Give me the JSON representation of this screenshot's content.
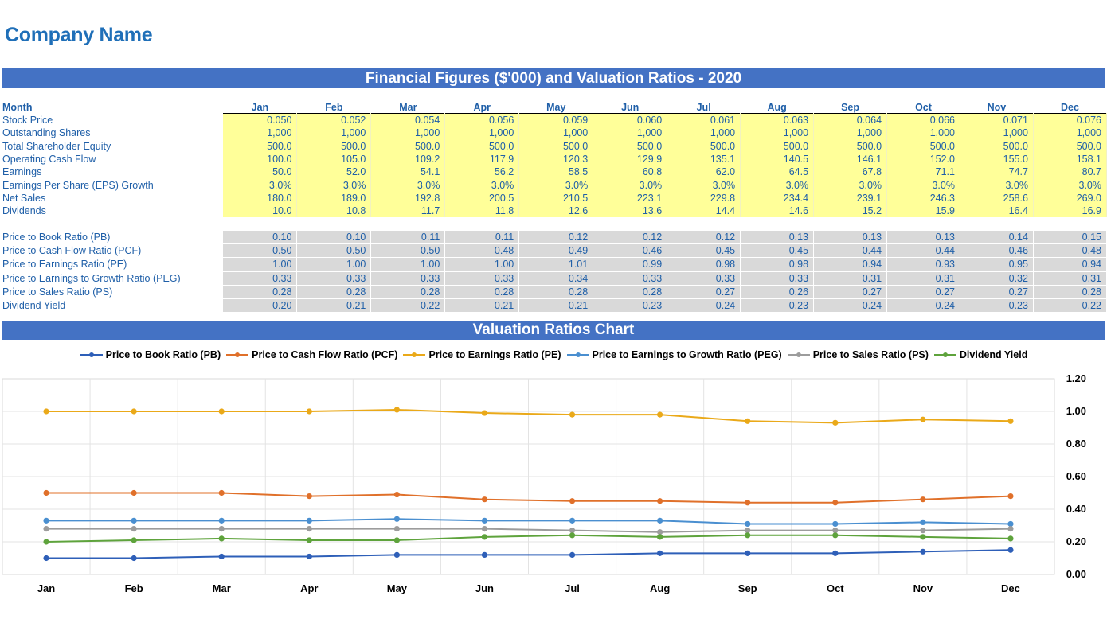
{
  "company_name": "Company Name",
  "table_title": "Financial Figures ($'000) and Valuation Ratios - 2020",
  "chart_title": "Valuation Ratios Chart",
  "months_header": "Month",
  "months": [
    "Jan",
    "Feb",
    "Mar",
    "Apr",
    "May",
    "Jun",
    "Jul",
    "Aug",
    "Sep",
    "Oct",
    "Nov",
    "Dec"
  ],
  "financial_rows": [
    {
      "label": "Stock Price",
      "values": [
        "0.050",
        "0.052",
        "0.054",
        "0.056",
        "0.059",
        "0.060",
        "0.061",
        "0.063",
        "0.064",
        "0.066",
        "0.071",
        "0.076"
      ]
    },
    {
      "label": "Outstanding Shares",
      "values": [
        "1,000",
        "1,000",
        "1,000",
        "1,000",
        "1,000",
        "1,000",
        "1,000",
        "1,000",
        "1,000",
        "1,000",
        "1,000",
        "1,000"
      ]
    },
    {
      "label": "Total Shareholder Equity",
      "values": [
        "500.0",
        "500.0",
        "500.0",
        "500.0",
        "500.0",
        "500.0",
        "500.0",
        "500.0",
        "500.0",
        "500.0",
        "500.0",
        "500.0"
      ]
    },
    {
      "label": "Operating Cash Flow",
      "values": [
        "100.0",
        "105.0",
        "109.2",
        "117.9",
        "120.3",
        "129.9",
        "135.1",
        "140.5",
        "146.1",
        "152.0",
        "155.0",
        "158.1"
      ]
    },
    {
      "label": "Earnings",
      "values": [
        "50.0",
        "52.0",
        "54.1",
        "56.2",
        "58.5",
        "60.8",
        "62.0",
        "64.5",
        "67.8",
        "71.1",
        "74.7",
        "80.7"
      ]
    },
    {
      "label": "Earnings Per Share (EPS) Growth",
      "values": [
        "3.0%",
        "3.0%",
        "3.0%",
        "3.0%",
        "3.0%",
        "3.0%",
        "3.0%",
        "3.0%",
        "3.0%",
        "3.0%",
        "3.0%",
        "3.0%"
      ]
    },
    {
      "label": "Net Sales",
      "values": [
        "180.0",
        "189.0",
        "192.8",
        "200.5",
        "210.5",
        "223.1",
        "229.8",
        "234.4",
        "239.1",
        "246.3",
        "258.6",
        "269.0"
      ]
    },
    {
      "label": "Dividends",
      "values": [
        "10.0",
        "10.8",
        "11.7",
        "11.8",
        "12.6",
        "13.6",
        "14.4",
        "14.6",
        "15.2",
        "15.9",
        "16.4",
        "16.9"
      ]
    }
  ],
  "ratio_rows": [
    {
      "label": "Price to Book Ratio (PB)",
      "values": [
        "0.10",
        "0.10",
        "0.11",
        "0.11",
        "0.12",
        "0.12",
        "0.12",
        "0.13",
        "0.13",
        "0.13",
        "0.14",
        "0.15"
      ]
    },
    {
      "label": "Price to Cash Flow Ratio (PCF)",
      "values": [
        "0.50",
        "0.50",
        "0.50",
        "0.48",
        "0.49",
        "0.46",
        "0.45",
        "0.45",
        "0.44",
        "0.44",
        "0.46",
        "0.48"
      ]
    },
    {
      "label": "Price to Earnings Ratio (PE)",
      "values": [
        "1.00",
        "1.00",
        "1.00",
        "1.00",
        "1.01",
        "0.99",
        "0.98",
        "0.98",
        "0.94",
        "0.93",
        "0.95",
        "0.94"
      ]
    },
    {
      "label": "Price to Earnings to Growth Ratio (PEG)",
      "values": [
        "0.33",
        "0.33",
        "0.33",
        "0.33",
        "0.34",
        "0.33",
        "0.33",
        "0.33",
        "0.31",
        "0.31",
        "0.32",
        "0.31"
      ]
    },
    {
      "label": "Price to Sales Ratio (PS)",
      "values": [
        "0.28",
        "0.28",
        "0.28",
        "0.28",
        "0.28",
        "0.28",
        "0.27",
        "0.26",
        "0.27",
        "0.27",
        "0.27",
        "0.28"
      ]
    },
    {
      "label": "Dividend Yield",
      "values": [
        "0.20",
        "0.21",
        "0.22",
        "0.21",
        "0.21",
        "0.23",
        "0.24",
        "0.23",
        "0.24",
        "0.24",
        "0.23",
        "0.22"
      ]
    }
  ],
  "chart_data": {
    "type": "line",
    "title": "",
    "xlabel": "",
    "ylabel": "",
    "categories": [
      "Jan",
      "Feb",
      "Mar",
      "Apr",
      "May",
      "Jun",
      "Jul",
      "Aug",
      "Sep",
      "Oct",
      "Nov",
      "Dec"
    ],
    "ylim": [
      0,
      1.2
    ],
    "yticks": [
      "0.00",
      "0.20",
      "0.40",
      "0.60",
      "0.80",
      "1.00",
      "1.20"
    ],
    "y_axis_side": "right",
    "grid": true,
    "legend_position": "top",
    "series": [
      {
        "name": "Price to Book Ratio (PB)",
        "color": "#2e5fb8",
        "values": [
          0.1,
          0.1,
          0.11,
          0.11,
          0.12,
          0.12,
          0.12,
          0.13,
          0.13,
          0.13,
          0.14,
          0.15
        ]
      },
      {
        "name": "Price to Cash Flow Ratio (PCF)",
        "color": "#e0702a",
        "values": [
          0.5,
          0.5,
          0.5,
          0.48,
          0.49,
          0.46,
          0.45,
          0.45,
          0.44,
          0.44,
          0.46,
          0.48
        ]
      },
      {
        "name": "Price to Earnings Ratio (PE)",
        "color": "#eaa919",
        "values": [
          1.0,
          1.0,
          1.0,
          1.0,
          1.01,
          0.99,
          0.98,
          0.98,
          0.94,
          0.93,
          0.95,
          0.94
        ]
      },
      {
        "name": "Price to Earnings to Growth Ratio (PEG)",
        "color": "#4a8fd0",
        "values": [
          0.33,
          0.33,
          0.33,
          0.33,
          0.34,
          0.33,
          0.33,
          0.33,
          0.31,
          0.31,
          0.32,
          0.31
        ]
      },
      {
        "name": "Price to Sales Ratio (PS)",
        "color": "#9c9c9c",
        "values": [
          0.28,
          0.28,
          0.28,
          0.28,
          0.28,
          0.28,
          0.27,
          0.26,
          0.27,
          0.27,
          0.27,
          0.28
        ]
      },
      {
        "name": "Dividend Yield",
        "color": "#5ea33c",
        "values": [
          0.2,
          0.21,
          0.22,
          0.21,
          0.21,
          0.23,
          0.24,
          0.23,
          0.24,
          0.24,
          0.23,
          0.22
        ]
      }
    ]
  }
}
